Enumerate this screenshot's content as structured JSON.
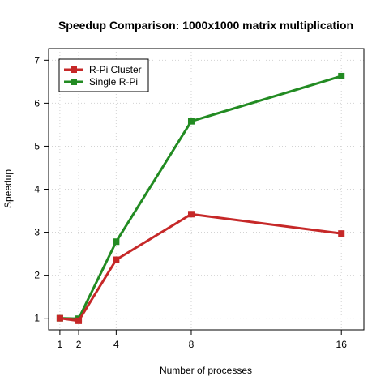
{
  "chart_data": {
    "type": "line",
    "title": "Speedup Comparison: 1000x1000 matrix multiplication",
    "xlabel": "Number of processes",
    "ylabel": "Speedup",
    "x": [
      1,
      2,
      4,
      8,
      16
    ],
    "x_tick_labels": [
      "1",
      "2",
      "4",
      "8",
      "16"
    ],
    "y_tick_labels": [
      "1",
      "2",
      "3",
      "4",
      "5",
      "6",
      "7"
    ],
    "xlim": [
      0.4,
      17.2
    ],
    "ylim": [
      0.73,
      7.27
    ],
    "grid": true,
    "legend_position": "top-left",
    "series": [
      {
        "name": "R-Pi Cluster",
        "color": "#c62828",
        "values": [
          1.0,
          0.94,
          2.36,
          3.42,
          2.97
        ]
      },
      {
        "name": "Single R-Pi",
        "color": "#228b22",
        "values": [
          1.0,
          0.99,
          2.78,
          5.58,
          6.63
        ]
      }
    ]
  }
}
